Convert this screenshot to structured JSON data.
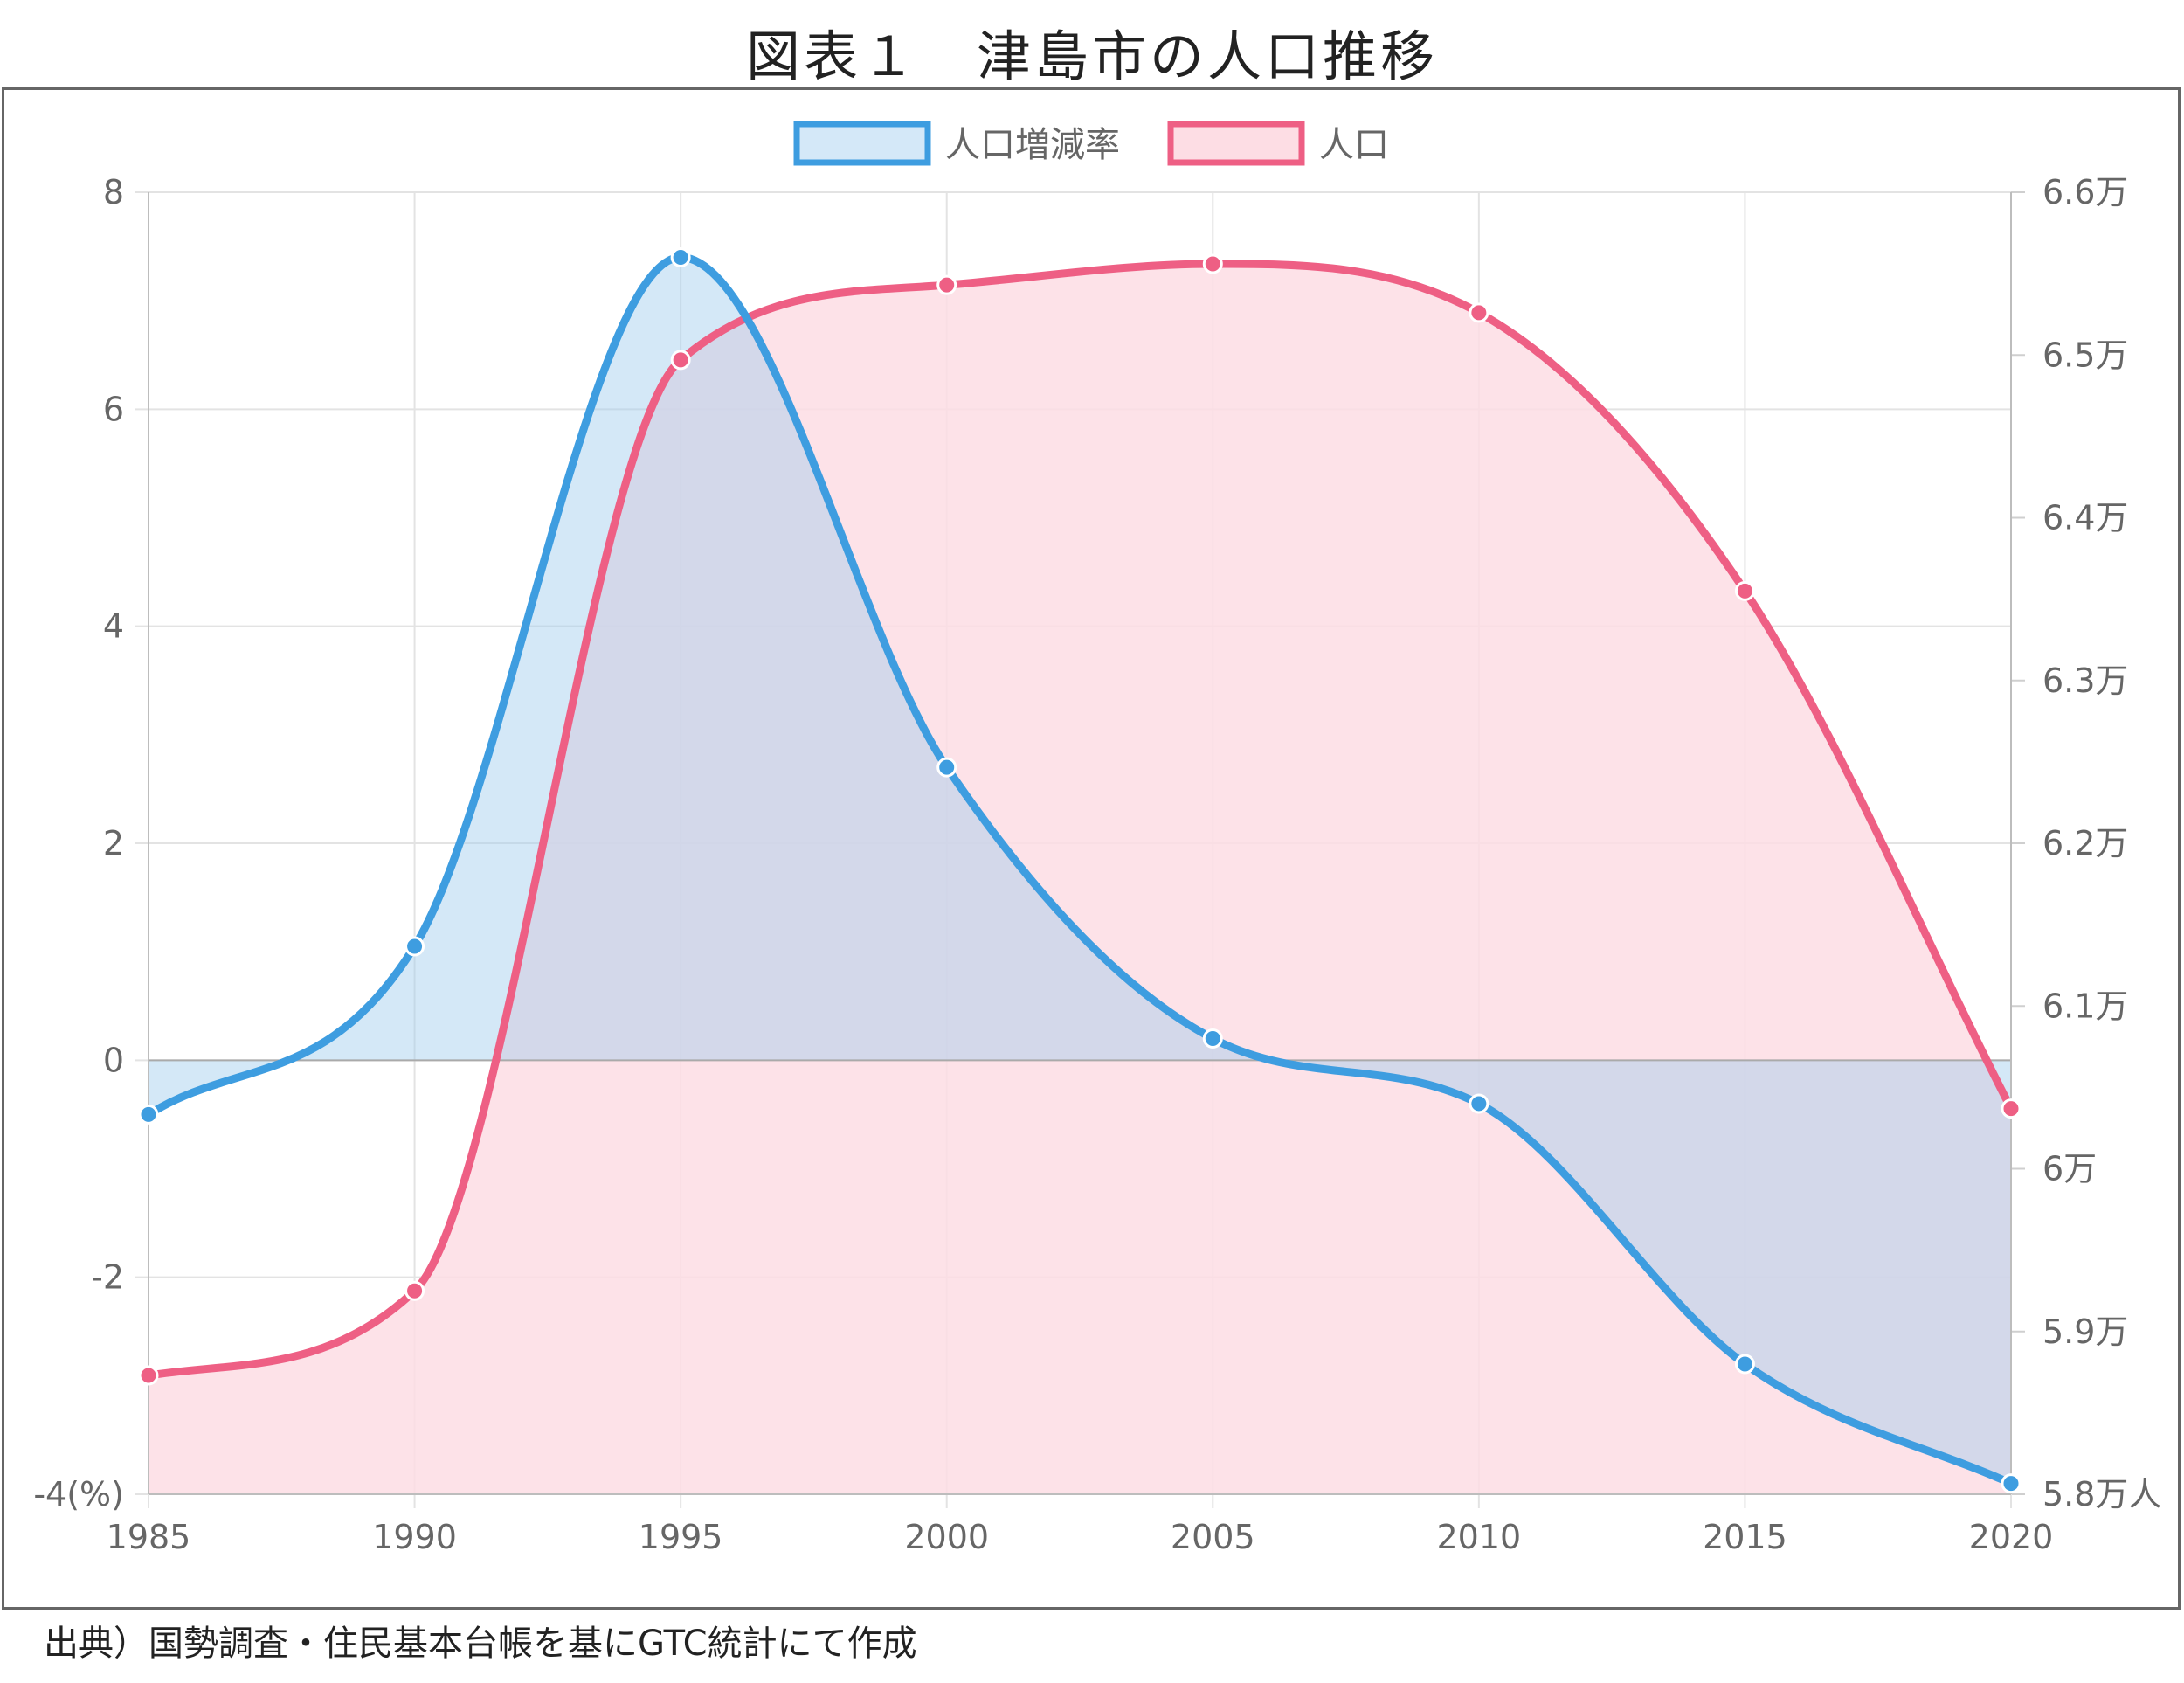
{
  "title": "図表１　津島市の人口推移",
  "source": "出典）国勢調査・住民基本台帳を基にGTC統計にて作成",
  "chart_data": {
    "type": "area",
    "x": [
      1985,
      1990,
      1995,
      2000,
      2005,
      2010,
      2015,
      2020
    ],
    "series": [
      {
        "name": "人口増減率",
        "axis": "left",
        "values": [
          -0.5,
          1.05,
          7.4,
          2.7,
          0.2,
          -0.4,
          -2.8,
          -3.9
        ],
        "line_color": "#3e9de0",
        "fill_color": "#d4e8f8"
      },
      {
        "name": "人口",
        "axis": "right",
        "values": [
          58730,
          59250,
          64970,
          65430,
          65560,
          65260,
          63550,
          60370
        ],
        "line_color": "#ee5f84",
        "fill_color": "#fddde4"
      }
    ],
    "y_left": {
      "ylim": [
        -4,
        8
      ],
      "ticks": [
        8,
        6,
        4,
        2,
        0,
        -2,
        -4
      ],
      "tick_labels": [
        "8",
        "6",
        "4",
        "2",
        "0",
        "-2",
        "-4(%)"
      ]
    },
    "y_right": {
      "ylim": [
        58000,
        66000
      ],
      "ticks": [
        66000,
        65000,
        64000,
        63000,
        62000,
        61000,
        60000,
        59000,
        58000
      ],
      "tick_labels": [
        "6.6万",
        "6.5万",
        "6.4万",
        "6.3万",
        "6.2万",
        "6.1万",
        "6万",
        "5.9万",
        "5.8万人"
      ]
    },
    "x_tick_labels": [
      "1985",
      "1990",
      "1995",
      "2000",
      "2005",
      "2010",
      "2015",
      "2020"
    ],
    "grid": true,
    "legend_position": "top-center",
    "overlap_fill_color": "#d6d0e6"
  }
}
